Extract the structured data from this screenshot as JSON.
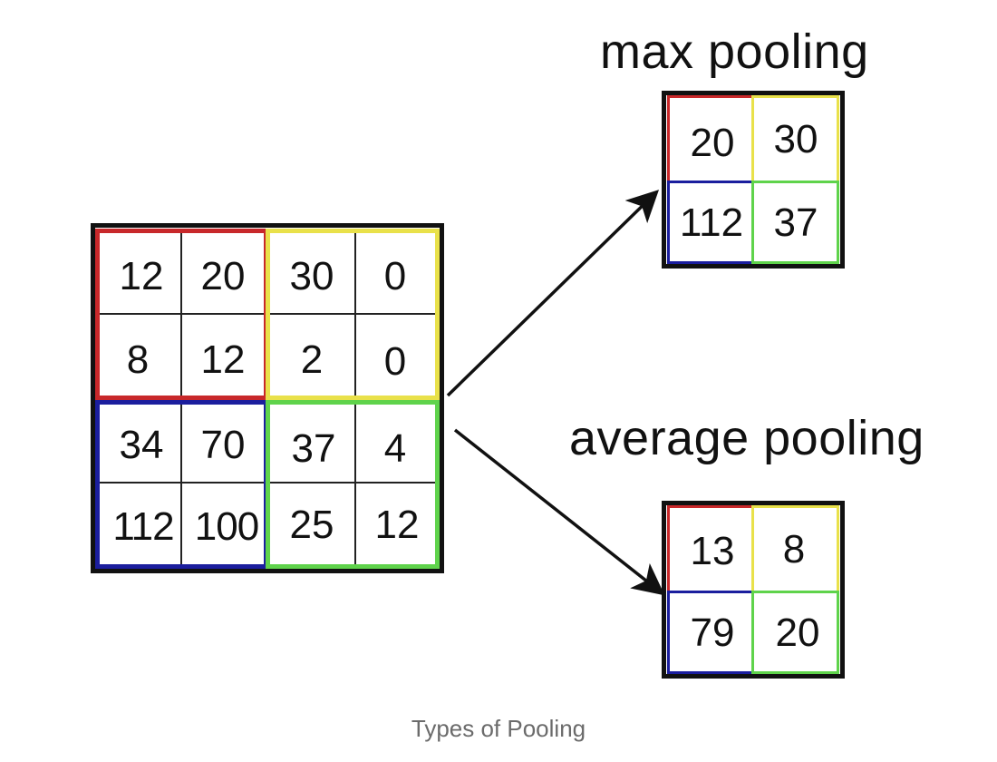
{
  "colors": {
    "top_left": "#c8282a",
    "top_right": "#e9e14a",
    "bottom_left": "#1b1e9e",
    "bottom_right": "#5fd34b",
    "border": "#111111",
    "inner_line": "#222222"
  },
  "input": {
    "rows": [
      [
        "12",
        "20",
        "30",
        "0"
      ],
      [
        "8",
        "12",
        "2",
        "0"
      ],
      [
        "34",
        "70",
        "37",
        "4"
      ],
      [
        "112",
        "100",
        "25",
        "12"
      ]
    ]
  },
  "max_pooling": {
    "label": "max pooling",
    "rows": [
      [
        "20",
        "30"
      ],
      [
        "112",
        "37"
      ]
    ]
  },
  "average_pooling": {
    "label": "average pooling",
    "rows": [
      [
        "13",
        "8"
      ],
      [
        "79",
        "20"
      ]
    ]
  },
  "caption": "Types of Pooling"
}
